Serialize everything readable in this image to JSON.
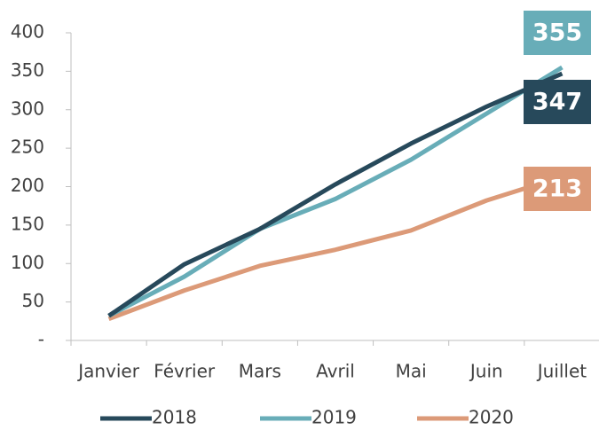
{
  "chart_data": {
    "type": "line",
    "categories": [
      "Janvier",
      "Février",
      "Mars",
      "Avril",
      "Mai",
      "Juin",
      "Juillet"
    ],
    "series": [
      {
        "name": "2018",
        "color": "#27495b",
        "values": [
          32,
          99,
          145,
          203,
          256,
          304,
          347
        ]
      },
      {
        "name": "2019",
        "color": "#68adb8",
        "values": [
          32,
          83,
          145,
          184,
          235,
          295,
          355
        ]
      },
      {
        "name": "2020",
        "color": "#dc9a78",
        "values": [
          28,
          65,
          97,
          118,
          143,
          182,
          213
        ]
      }
    ],
    "ylim": [
      0,
      400
    ],
    "yticks": [
      {
        "value": 0,
        "label": "-"
      },
      50,
      100,
      150,
      200,
      250,
      300,
      350,
      400
    ]
  }
}
